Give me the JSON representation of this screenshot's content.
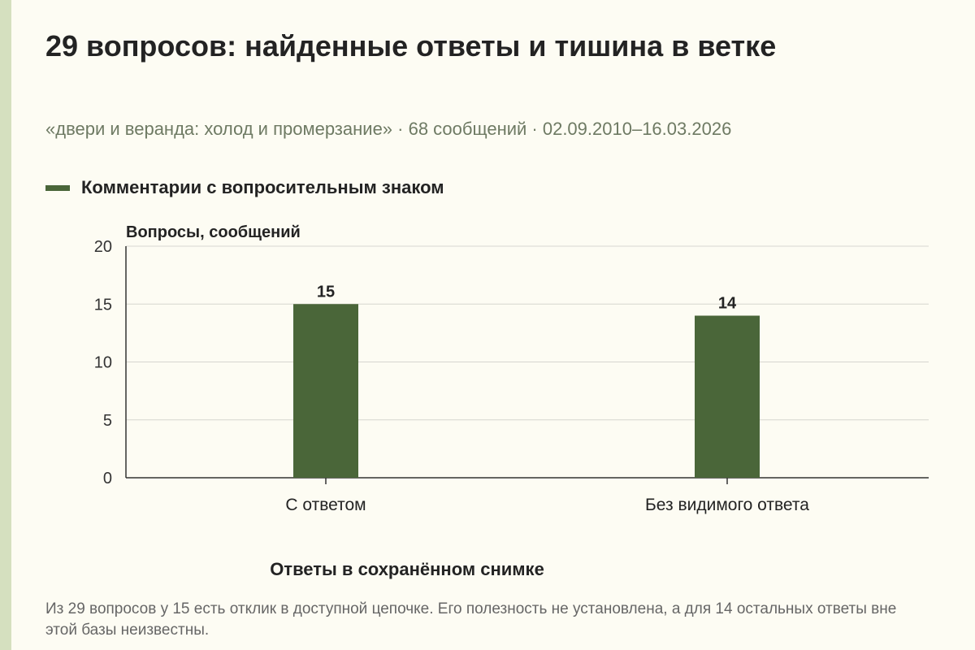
{
  "header": {
    "title": "29 вопросов: найденные ответы и тишина в ветке",
    "subtitle": "«двери и веранда: холод и промерзание» · 68 сообщений · 02.09.2010–16.03.2026"
  },
  "legend": {
    "label": "Комментарии с вопросительным знаком"
  },
  "chart_data": {
    "type": "bar",
    "categories": [
      "С ответом",
      "Без видимого ответа"
    ],
    "series": [
      {
        "name": "Комментарии с вопросительным знаком",
        "values": [
          15,
          14
        ],
        "color": "#4a6639"
      }
    ],
    "ylabel": "Вопросы, сообщений",
    "xlabel": "Ответы в сохранённом снимке",
    "ylim": [
      0,
      20
    ],
    "yticks": [
      0,
      5,
      10,
      15,
      20
    ],
    "grid": true,
    "legend_position": "top-left"
  },
  "footer": {
    "note": "Из 29 вопросов у 15 есть отклик в доступной цепочке. Его полезность не установлена, а для 14 остальных ответы вне этой базы неизвестны."
  }
}
